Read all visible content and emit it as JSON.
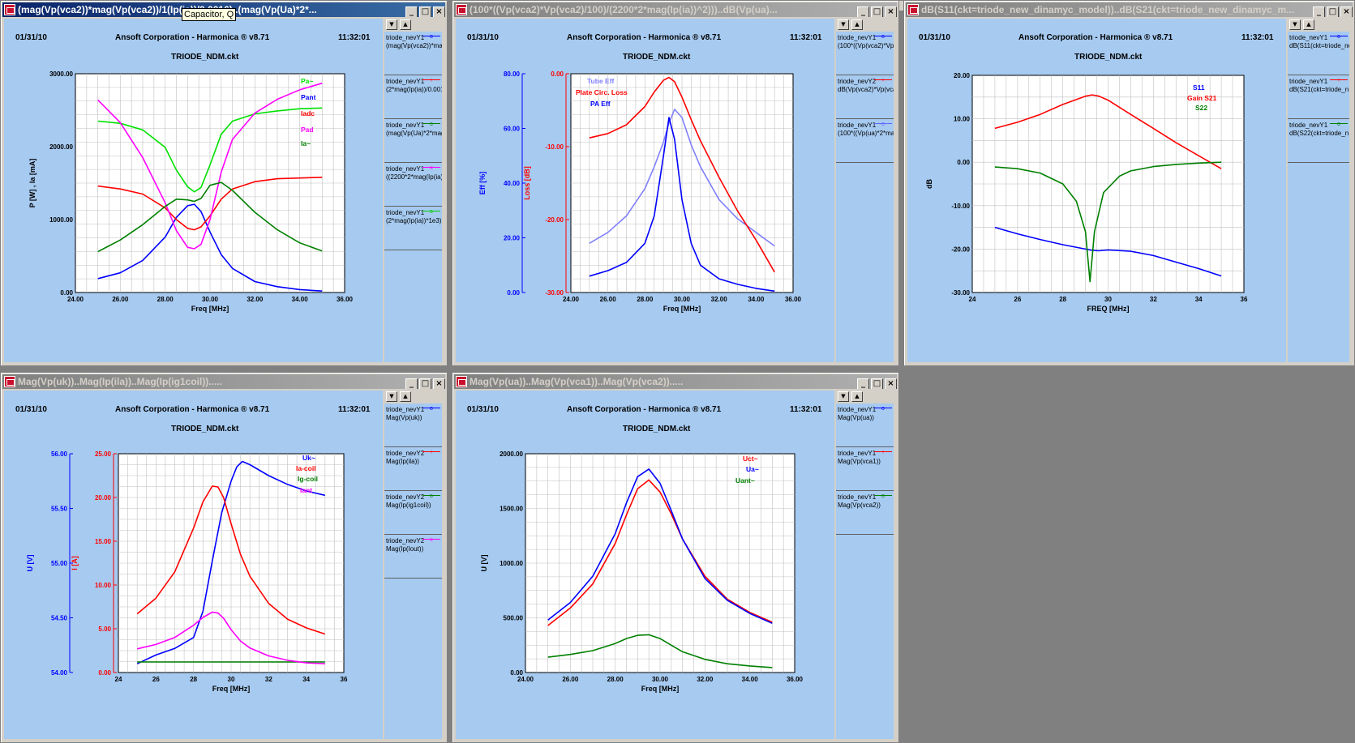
{
  "tooltip": "Capacitor, Q",
  "windows": [
    {
      "title": "(mag(Vp(vca2))*mag(Vp(vca2))/1(Ip(ia))/0.0016)..(mag(Vp(Ua)*2*...",
      "active": true,
      "date": "01/31/10",
      "company": "Ansoft Corporation - Harmonica ® v8.71",
      "time": "11:32:01",
      "circuit": "TRIODE_NDM.ckt",
      "legend": [
        {
          "l1": "triode_nevY1",
          "l2": "(mag(Vp(vca2))*mag",
          "color": "#0000ff",
          "mark": "o"
        },
        {
          "l1": "triode_nevY1",
          "l2": "(2*mag(Ip(ia))/0.001",
          "color": "#ff0000",
          "mark": "+"
        },
        {
          "l1": "triode_nevY1",
          "l2": "(mag(Vp(Ua)*2*mag",
          "color": "#008000",
          "mark": "o"
        },
        {
          "l1": "triode_nevY1",
          "l2": "((2200*2*mag(Ip(ia)",
          "color": "#ff00ff",
          "mark": "x"
        },
        {
          "l1": "triode_nevY1",
          "l2": "(2*mag(Ip(ia))*1e3)",
          "color": "#00cc00",
          "mark": "o"
        }
      ]
    },
    {
      "title": "(100*((Vp(vca2)*Vp(vca2)/100)/(2200*2*mag(Ip(ia))^2)))..dB(Vp(ua)...",
      "active": false,
      "date": "01/31/10",
      "company": "Ansoft Corporation - Harmonica ® v8.71",
      "time": "11:32:01",
      "circuit": "TRIODE_NDM.ckt",
      "legend": [
        {
          "l1": "triode_nevY1",
          "l2": "(100*((Vp(vca2)*Vp(v",
          "color": "#0000ff",
          "mark": "o"
        },
        {
          "l1": "triode_nevY2",
          "l2": "dB(Vp(vca2)*Vp(vca",
          "color": "#ff0000",
          "mark": "+"
        },
        {
          "l1": "triode_nevY1",
          "l2": "(100*((Vp(ua)*2*mag",
          "color": "#6666ff",
          "mark": "o"
        }
      ]
    },
    {
      "title": "dB(S11(ckt=triode_new_dinamyc_model))..dB(S21(ckt=triode_new_dinamyc_m...",
      "active": false,
      "date": "01/31/10",
      "company": "Ansoft Corporation - Harmonica ® v8.71",
      "time": "11:32:01",
      "circuit": "TRIODE_NDM.ckt",
      "legend": [
        {
          "l1": "triode_nevY1",
          "l2": "dB(S11(ckt=triode_ne",
          "color": "#0000ff",
          "mark": "o"
        },
        {
          "l1": "triode_nevY1",
          "l2": "dB(S21(ckt=triode_n",
          "color": "#ff0000",
          "mark": "+"
        },
        {
          "l1": "triode_nevY1",
          "l2": "dB(S22(ckt=triode_n",
          "color": "#008000",
          "mark": "o"
        }
      ]
    },
    {
      "title": "Mag(Vp(uk))..Mag(Ip(ila))..Mag(Ip(ig1coil)).....",
      "active": false,
      "date": "01/31/10",
      "company": "Ansoft Corporation - Harmonica ® v8.71",
      "time": "11:32:01",
      "circuit": "TRIODE_NDM.ckt",
      "legend": [
        {
          "l1": "triode_nevY1",
          "l2": "Mag(Vp(uk))",
          "color": "#0000ff",
          "mark": "o"
        },
        {
          "l1": "triode_nevY2",
          "l2": "Mag(Ip(ila))",
          "color": "#ff0000",
          "mark": "+"
        },
        {
          "l1": "triode_nevY2",
          "l2": "Mag(Ip(ig1coil))",
          "color": "#008000",
          "mark": "o"
        },
        {
          "l1": "triode_nevY2",
          "l2": "Mag(Ip(Iout))",
          "color": "#ff00ff",
          "mark": "x"
        }
      ]
    },
    {
      "title": "Mag(Vp(ua))..Mag(Vp(vca1))..Mag(Vp(vca2)).....",
      "active": false,
      "date": "01/31/10",
      "company": "Ansoft Corporation - Harmonica ® v8.71",
      "time": "11:32:01",
      "circuit": "TRIODE_NDM.ckt",
      "legend": [
        {
          "l1": "triode_nevY1",
          "l2": "Mag(Vp(ua))",
          "color": "#0000ff",
          "mark": "o"
        },
        {
          "l1": "triode_nevY1",
          "l2": "Mag(Vp(vca1))",
          "color": "#ff0000",
          "mark": "+"
        },
        {
          "l1": "triode_nevY1",
          "l2": "Mag(Vp(vca2))",
          "color": "#008000",
          "mark": "o"
        }
      ]
    }
  ],
  "chart_data": [
    {
      "type": "line",
      "xlabel": "Freq [MHz]",
      "ylabel": "P  [W] ,  Ia  [mA]",
      "xlim": [
        24,
        36
      ],
      "ylim": [
        0,
        3000
      ],
      "xticks": [
        "24.00",
        "26.00",
        "28.00",
        "30.00",
        "32.00",
        "34.00",
        "36.00"
      ],
      "yticks": [
        "0.00",
        "1000.00",
        "2000.00",
        "3000.00"
      ],
      "series": [
        {
          "name": "Pa~",
          "color": "#00e000",
          "x": [
            25,
            26,
            27,
            28,
            28.5,
            29,
            29.3,
            29.6,
            30,
            30.5,
            31,
            32,
            33,
            34,
            35
          ],
          "values": [
            2350,
            2320,
            2230,
            1990,
            1680,
            1450,
            1380,
            1440,
            1750,
            2170,
            2350,
            2450,
            2490,
            2520,
            2530
          ]
        },
        {
          "name": "Pant",
          "color": "#0000ff",
          "x": [
            25,
            26,
            27,
            28,
            28.5,
            29,
            29.3,
            29.6,
            30,
            30.5,
            31,
            32,
            33,
            34,
            35
          ],
          "values": [
            190,
            270,
            440,
            760,
            1030,
            1190,
            1210,
            1110,
            830,
            520,
            330,
            150,
            80,
            40,
            20
          ]
        },
        {
          "name": "Iadc",
          "color": "#ff0000",
          "x": [
            25,
            26,
            27,
            28,
            28.5,
            29,
            29.3,
            29.6,
            30,
            30.5,
            31,
            32,
            33,
            34,
            35
          ],
          "values": [
            1460,
            1420,
            1350,
            1160,
            1000,
            880,
            860,
            900,
            1050,
            1280,
            1420,
            1520,
            1560,
            1570,
            1580
          ]
        },
        {
          "name": "Pad",
          "color": "#ff00ff",
          "x": [
            25,
            26,
            27,
            28,
            28.5,
            29,
            29.3,
            29.6,
            30,
            30.5,
            31,
            32,
            33,
            34,
            35
          ],
          "values": [
            2640,
            2330,
            1850,
            1230,
            850,
            620,
            600,
            660,
            1000,
            1650,
            2100,
            2460,
            2650,
            2780,
            2870
          ]
        },
        {
          "name": "Ia~",
          "color": "#008000",
          "x": [
            25,
            26,
            27,
            28,
            28.5,
            29,
            29.3,
            29.6,
            30,
            30.5,
            31,
            32,
            33,
            34,
            35
          ],
          "values": [
            560,
            720,
            930,
            1180,
            1280,
            1270,
            1250,
            1290,
            1470,
            1510,
            1400,
            1100,
            860,
            680,
            570
          ]
        }
      ]
    },
    {
      "type": "line",
      "xlabel": "Freq [MHz]",
      "ylabel_left": "Eff  [%]",
      "ylabel_right": "Loss [dB]",
      "xlim": [
        24,
        36
      ],
      "ylim_left": [
        0,
        80
      ],
      "ylim_right": [
        -30,
        0
      ],
      "xticks": [
        "24.00",
        "26.00",
        "28.00",
        "30.00",
        "32.00",
        "34.00",
        "36.00"
      ],
      "yticks_left": [
        "0.00",
        "20.00",
        "40.00",
        "60.00",
        "80.00"
      ],
      "yticks_right": [
        "-30.00",
        "-20.00",
        "-10.00",
        "0.00"
      ],
      "series": [
        {
          "name": "Tube Eff",
          "axis": "left",
          "color": "#8080ff",
          "x": [
            25,
            26,
            27,
            28,
            28.5,
            29,
            29.3,
            29.6,
            30,
            30.5,
            31,
            32,
            33,
            34,
            35
          ],
          "values": [
            18,
            22,
            28,
            38,
            46,
            55,
            62,
            67,
            64,
            54,
            46,
            34,
            27,
            22,
            17
          ]
        },
        {
          "name": "Plate Circ. Loss",
          "axis": "right",
          "color": "#ff0000",
          "x": [
            25,
            26,
            27,
            28,
            28.5,
            29,
            29.3,
            29.6,
            30,
            30.5,
            31,
            32,
            33,
            34,
            35
          ],
          "values": [
            -8.8,
            -8.2,
            -7,
            -4.5,
            -2.5,
            -0.9,
            -0.5,
            -1.1,
            -3.2,
            -6.3,
            -9.2,
            -14.2,
            -18.8,
            -22.8,
            -27.2
          ]
        },
        {
          "name": "PA Eff",
          "axis": "left",
          "color": "#0000ff",
          "x": [
            25,
            26,
            27,
            28,
            28.5,
            29,
            29.3,
            29.6,
            30,
            30.5,
            31,
            32,
            33,
            34,
            35
          ],
          "values": [
            6,
            8,
            11,
            18,
            28,
            50,
            64,
            56,
            34,
            18,
            10,
            5,
            3,
            1.5,
            0.5
          ]
        }
      ]
    },
    {
      "type": "line",
      "xlabel": "FREQ [MHz]",
      "ylabel": "dB",
      "xlim": [
        24,
        36
      ],
      "ylim": [
        -30,
        20
      ],
      "xticks": [
        "24",
        "26",
        "28",
        "30",
        "32",
        "34",
        "36"
      ],
      "yticks": [
        "-30.00",
        "-20.00",
        "-10.00",
        "0.00",
        "10.00",
        "20.00"
      ],
      "series": [
        {
          "name": "S11",
          "color": "#0000ff",
          "x": [
            25,
            26,
            27,
            28,
            29,
            29.3,
            29.6,
            30,
            31,
            32,
            33,
            34,
            35
          ],
          "values": [
            -15,
            -16.5,
            -17.8,
            -19,
            -20,
            -20.3,
            -20.4,
            -20.2,
            -20.5,
            -21.5,
            -23,
            -24.5,
            -26.2
          ]
        },
        {
          "name": "Gain S21",
          "color": "#ff0000",
          "x": [
            25,
            26,
            27,
            28,
            29,
            29.3,
            29.6,
            30,
            31,
            32,
            33,
            34,
            35
          ],
          "values": [
            7.8,
            9.2,
            11,
            13.3,
            15.2,
            15.5,
            15.2,
            14.3,
            11,
            7.8,
            4.5,
            1.5,
            -1.5
          ]
        },
        {
          "name": "S22",
          "color": "#008000",
          "x": [
            25,
            26,
            27,
            28,
            28.6,
            29,
            29.2,
            29.4,
            29.8,
            30.5,
            31,
            32,
            33,
            34,
            35
          ],
          "values": [
            -1.1,
            -1.5,
            -2.5,
            -5,
            -9,
            -16,
            -27.5,
            -16,
            -7,
            -3.2,
            -2,
            -1,
            -0.5,
            -0.2,
            0
          ]
        }
      ]
    },
    {
      "type": "line",
      "xlabel": "Freq [MHz]",
      "ylabel_left": "U  [V]",
      "ylabel_right": "I  [A]",
      "xlim": [
        24,
        36
      ],
      "ylim_left": [
        54,
        56
      ],
      "ylim_right": [
        0,
        25
      ],
      "xticks": [
        "24",
        "26",
        "28",
        "30",
        "32",
        "34",
        "36"
      ],
      "yticks_left": [
        "54.00",
        "54.50",
        "55.00",
        "55.50",
        "56.00"
      ],
      "yticks_right": [
        "0.00",
        "5.00",
        "10.00",
        "15.00",
        "20.00",
        "25.00"
      ],
      "series": [
        {
          "name": "Uk~",
          "axis": "left",
          "color": "#0000ff",
          "x": [
            25,
            26,
            27,
            28,
            28.5,
            29,
            29.5,
            30,
            30.3,
            30.6,
            31,
            32,
            33,
            34,
            35
          ],
          "values": [
            54.08,
            54.16,
            54.22,
            54.32,
            54.56,
            55.02,
            55.46,
            55.75,
            55.88,
            55.93,
            55.9,
            55.8,
            55.72,
            55.66,
            55.62
          ]
        },
        {
          "name": "Ia-coil",
          "axis": "right",
          "color": "#ff0000",
          "x": [
            25,
            26,
            27,
            28,
            28.5,
            29,
            29.3,
            29.6,
            30,
            30.5,
            31,
            32,
            33,
            34,
            35
          ],
          "values": [
            6.7,
            8.5,
            11.5,
            16.5,
            19.5,
            21.3,
            21.2,
            20,
            17,
            13.5,
            11,
            7.9,
            6.1,
            5.1,
            4.4
          ]
        },
        {
          "name": "Ig-coil",
          "axis": "right",
          "color": "#008000",
          "x": [
            25,
            27,
            29,
            31,
            33,
            35
          ],
          "values": [
            1.2,
            1.2,
            1.2,
            1.2,
            1.2,
            1.2
          ]
        },
        {
          "name": "Iant",
          "axis": "right",
          "color": "#ff00ff",
          "x": [
            25,
            26,
            27,
            28,
            28.5,
            29,
            29.3,
            29.6,
            30,
            30.5,
            31,
            32,
            33,
            34,
            35
          ],
          "values": [
            2.7,
            3.2,
            4,
            5.4,
            6.3,
            6.9,
            6.8,
            6.2,
            4.9,
            3.6,
            2.8,
            1.9,
            1.4,
            1.1,
            1
          ]
        }
      ]
    },
    {
      "type": "line",
      "xlabel": "Freq [MHz]",
      "ylabel": "U  [V]",
      "xlim": [
        24,
        36
      ],
      "ylim": [
        0,
        2000
      ],
      "xticks": [
        "24.00",
        "26.00",
        "28.00",
        "30.00",
        "32.00",
        "34.00",
        "36.00"
      ],
      "yticks": [
        "0.00",
        "500.00",
        "1000.00",
        "1500.00",
        "2000.00"
      ],
      "series": [
        {
          "name": "Uct~",
          "color": "#ff0000",
          "x": [
            25,
            26,
            27,
            28,
            28.5,
            29,
            29.5,
            30,
            30.5,
            31,
            32,
            33,
            34,
            35
          ],
          "values": [
            430,
            590,
            810,
            1180,
            1440,
            1680,
            1760,
            1650,
            1450,
            1220,
            880,
            670,
            550,
            460
          ]
        },
        {
          "name": "Ua~",
          "color": "#0000ff",
          "x": [
            25,
            26,
            27,
            28,
            28.5,
            29,
            29.5,
            30,
            30.5,
            31,
            32,
            33,
            34,
            35
          ],
          "values": [
            480,
            640,
            880,
            1270,
            1550,
            1790,
            1860,
            1730,
            1480,
            1220,
            860,
            660,
            540,
            450
          ]
        },
        {
          "name": "Uant~",
          "color": "#008000",
          "x": [
            25,
            26,
            27,
            28,
            28.5,
            29,
            29.5,
            30,
            30.5,
            31,
            32,
            33,
            34,
            35
          ],
          "values": [
            140,
            165,
            200,
            265,
            310,
            340,
            345,
            310,
            250,
            190,
            120,
            80,
            60,
            45
          ]
        }
      ]
    }
  ]
}
